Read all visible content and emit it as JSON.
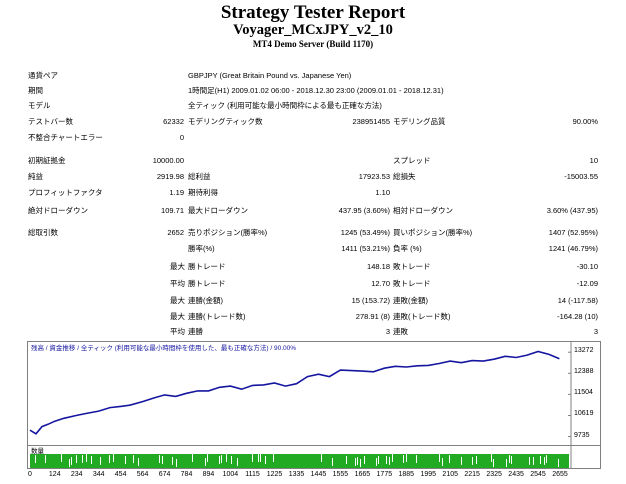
{
  "header": {
    "title": "Strategy Tester Report",
    "ea_name": "Voyager_MCxJPY_v2_10",
    "server": "MT4 Demo Server (Build 1170)"
  },
  "info": {
    "symbol_label": "通貨ペア",
    "symbol_value": "GBPJPY (Great Britain Pound vs. Japanese Yen)",
    "period_label": "期間",
    "period_value": "1時間足(H1) 2009.01.02 06:00 - 2018.12.30 23:00 (2009.01.01 - 2018.12.31)",
    "model_label": "モデル",
    "model_value": "全ティック (利用可能な最小時間枠による最も正確な方法)",
    "bars_label": "テストバー数",
    "bars_value": "62332",
    "ticks_label": "モデリングティック数",
    "ticks_value": "238951455",
    "quality_label": "モデリング品質",
    "quality_value": "90.00%",
    "errors_label": "不整合チャートエラー",
    "errors_value": "0"
  },
  "stats": {
    "deposit_label": "初期証拠金",
    "deposit_value": "10000.00",
    "spread_label": "スプレッド",
    "spread_value": "10",
    "net_label": "純益",
    "net_value": "2919.98",
    "gross_profit_label": "総利益",
    "gross_profit_value": "17923.53",
    "gross_loss_label": "総損失",
    "gross_loss_value": "-15003.55",
    "pf_label": "プロフィットファクタ",
    "pf_value": "1.19",
    "payoff_label": "期待利得",
    "payoff_value": "1.10",
    "abs_dd_label": "絶対ドローダウン",
    "abs_dd_value": "109.71",
    "max_dd_label": "最大ドローダウン",
    "max_dd_value": "437.95 (3.60%)",
    "rel_dd_label": "相対ドローダウン",
    "rel_dd_value": "3.60% (437.95)",
    "trades_label": "総取引数",
    "trades_value": "2652",
    "short_label": "売りポジション(勝率%)",
    "short_value": "1245 (53.49%)",
    "long_label": "買いポジション(勝率%)",
    "long_value": "1407 (52.95%)",
    "win_rate_label": "勝率(%)",
    "win_rate_value": "1411 (53.21%)",
    "loss_rate_label": "負率 (%)",
    "loss_rate_value": "1241 (46.79%)",
    "max1": "最大",
    "largest_win_label": "勝トレード",
    "largest_win_value": "148.18",
    "largest_loss_label": "敗トレード",
    "largest_loss_value": "-30.10",
    "avg1": "平均",
    "avg_win_label": "勝トレード",
    "avg_win_value": "12.70",
    "avg_loss_label": "敗トレード",
    "avg_loss_value": "-12.09",
    "max2": "最大",
    "cons_wins_label": "連勝(金額)",
    "cons_wins_value": "15 (153.72)",
    "cons_losses_label": "連敗(金額)",
    "cons_losses_value": "14 (-117.58)",
    "max3": "最大",
    "cons_profit_label": "連勝(トレード数)",
    "cons_profit_value": "278.91 (8)",
    "cons_loss_label": "連敗(トレード数)",
    "cons_loss_value": "-164.28 (10)",
    "avg2": "平均",
    "avg_cons_wins_label": "連勝",
    "avg_cons_wins_value": "3",
    "avg_cons_losses_label": "連敗",
    "avg_cons_losses_value": "3"
  },
  "chart_data": {
    "type": "line",
    "legend": "残高 / 資金推移 / 全ティック (利用可能な最小時間枠を使用した、最も正確な方法) / 90.00%",
    "volume_label": "数量",
    "ylim": [
      9380,
      13700
    ],
    "y_ticks": [
      9735,
      10619,
      11504,
      12388,
      13272
    ],
    "x_ticks": [
      0,
      124,
      234,
      344,
      454,
      564,
      674,
      784,
      894,
      1004,
      1115,
      1225,
      1335,
      1445,
      1555,
      1665,
      1775,
      1885,
      1995,
      2105,
      2215,
      2325,
      2435,
      2545,
      2655
    ],
    "x_range": [
      0,
      2700
    ],
    "series": [
      {
        "x": [
          0,
          30,
          60,
          90,
          124,
          170,
          234,
          280,
          344,
          400,
          454,
          500,
          564,
          620,
          674,
          730,
          784,
          840,
          894,
          950,
          1004,
          1060,
          1115,
          1170,
          1225,
          1280,
          1335,
          1390,
          1445,
          1500,
          1555,
          1610,
          1665,
          1720,
          1775,
          1830,
          1885,
          1940,
          1995,
          2050,
          2105,
          2160,
          2215,
          2270,
          2325,
          2380,
          2435,
          2490,
          2545,
          2600,
          2652
        ],
        "y": [
          10000,
          9850,
          10150,
          10250,
          10380,
          10500,
          10620,
          10700,
          10800,
          10950,
          11000,
          11050,
          11200,
          11350,
          11480,
          11420,
          11550,
          11650,
          11650,
          11800,
          11850,
          11720,
          11880,
          11900,
          11980,
          11850,
          11950,
          12250,
          12350,
          12250,
          12520,
          12500,
          12480,
          12450,
          12600,
          12680,
          12650,
          12700,
          12720,
          12800,
          12900,
          12830,
          12920,
          12900,
          12980,
          13100,
          13050,
          13150,
          13300,
          13180,
          13000
        ]
      }
    ],
    "colors": {
      "line": "#1515a0",
      "volume": "#22aa22"
    }
  }
}
